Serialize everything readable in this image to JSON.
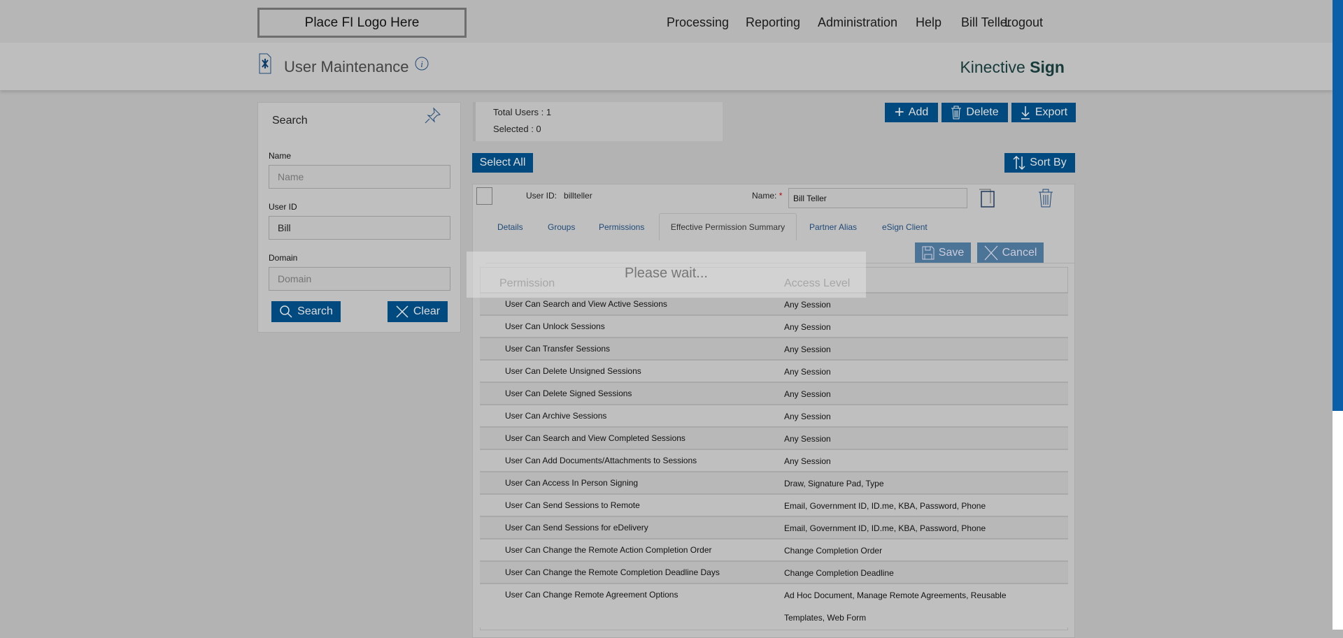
{
  "header": {
    "logo": "Place FI Logo Here",
    "nav": [
      "Processing",
      "Reporting",
      "Administration",
      "Help",
      "Bill Teller",
      "Logout"
    ]
  },
  "subheader": {
    "title": "User Maintenance",
    "brand_light": "Kinective",
    "brand_bold": "Sign"
  },
  "search": {
    "title": "Search",
    "fields": [
      {
        "label": "Name",
        "value": "",
        "placeholder": "Name"
      },
      {
        "label": "User ID",
        "value": "Bill",
        "placeholder": ""
      },
      {
        "label": "Domain",
        "value": "",
        "placeholder": "Domain"
      }
    ],
    "search_label": "Search",
    "clear_label": "Clear"
  },
  "stats": {
    "total": "Total Users : 1",
    "selected": "Selected : 0"
  },
  "toolbar": {
    "add": "Add",
    "delete": "Delete",
    "export": "Export",
    "select_all": "Select All",
    "sort_by": "Sort By"
  },
  "user": {
    "id_label": "User ID:",
    "id_value": "billteller",
    "name_label": "Name:",
    "required": "*",
    "name_value": "Bill Teller"
  },
  "tabs": [
    "Details",
    "Groups",
    "Permissions",
    "Effective Permission Summary",
    "Partner Alias",
    "eSign Client"
  ],
  "active_tab": "Effective Permission Summary",
  "actions": {
    "save": "Save",
    "cancel": "Cancel"
  },
  "loading": "Please wait...",
  "table": {
    "headers": [
      "Permission",
      "Access Level"
    ],
    "rows": [
      [
        "User Can Search and View Active Sessions",
        "Any Session"
      ],
      [
        "User Can Unlock Sessions",
        "Any Session"
      ],
      [
        "User Can Transfer Sessions",
        "Any Session"
      ],
      [
        "User Can Delete Unsigned Sessions",
        "Any Session"
      ],
      [
        "User Can Delete Signed Sessions",
        "Any Session"
      ],
      [
        "User Can Archive Sessions",
        "Any Session"
      ],
      [
        "User Can Search and View Completed Sessions",
        "Any Session"
      ],
      [
        "User Can Add Documents/Attachments to Sessions",
        "Any Session"
      ],
      [
        "User Can Access In Person Signing",
        "Draw, Signature Pad, Type"
      ],
      [
        "User Can Send Sessions to Remote",
        "Email, Government ID, ID.me, KBA, Password, Phone"
      ],
      [
        "User Can Send Sessions for eDelivery",
        "Email, Government ID, ID.me, KBA, Password, Phone"
      ],
      [
        "User Can Change the Remote Action Completion Order",
        "Change Completion Order"
      ],
      [
        "User Can Change the Remote Completion Deadline Days",
        "Change Completion Deadline"
      ],
      [
        "User Can Change Remote Agreement Options",
        "Ad Hoc Document, Manage Remote Agreements, Reusable Templates, Web Form"
      ]
    ]
  },
  "colors": {
    "primary": "#004a80",
    "scrollbar": "#0b5fa8"
  }
}
